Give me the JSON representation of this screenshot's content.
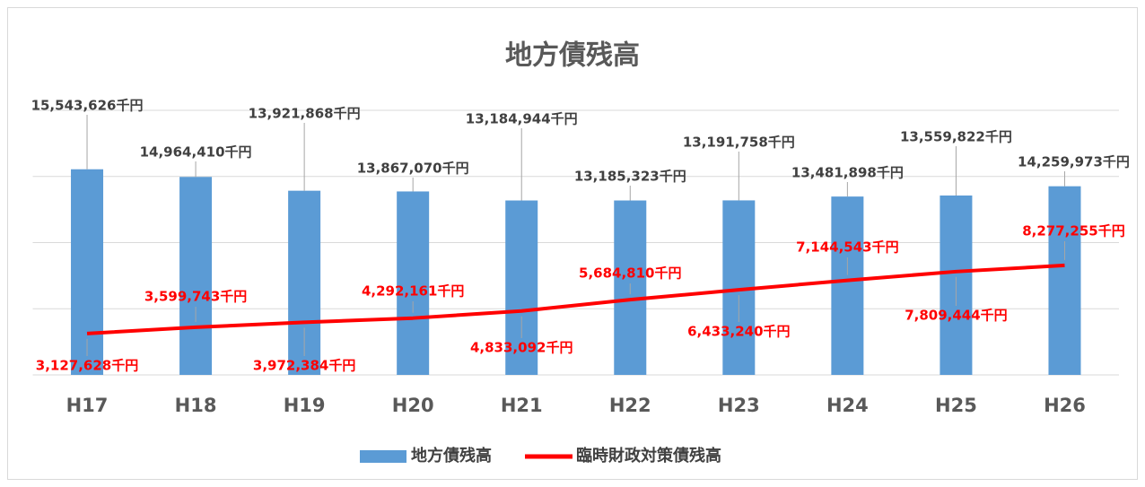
{
  "chart_data": {
    "type": "bar-line",
    "title": "地方債残高",
    "categories": [
      "H17",
      "H18",
      "H19",
      "H20",
      "H21",
      "H22",
      "H23",
      "H24",
      "H25",
      "H26"
    ],
    "series": [
      {
        "name": "地方債残高",
        "type": "bar",
        "color": "#5b9bd5",
        "values": [
          15543626,
          14964410,
          13921868,
          13867070,
          13184944,
          13185323,
          13191758,
          13481898,
          13559822,
          14259973
        ],
        "value_labels": [
          "15,543,626千円",
          "14,964,410千円",
          "13,921,868千円",
          "13,867,070千円",
          "13,184,944千円",
          "13,185,323千円",
          "13,191,758千円",
          "13,481,898千円",
          "13,559,822千円",
          "14,259,973千円"
        ]
      },
      {
        "name": "臨時財政対策債残高",
        "type": "line",
        "color": "#ff0000",
        "values": [
          3127628,
          3599743,
          3972384,
          4292161,
          4833092,
          5684810,
          6433240,
          7144543,
          7809444,
          8277255
        ],
        "value_labels": [
          "3,127,628千円",
          "3,599,743千円",
          "3,972,384千円",
          "4,292,161千円",
          "4,833,092千円",
          "5,684,810千円",
          "6,433,240千円",
          "7,144,543千円",
          "7,809,444千円",
          "8,277,255千円"
        ]
      }
    ],
    "ylim": [
      0,
      20000000
    ],
    "yticks": [
      0,
      5000000,
      10000000,
      15000000,
      20000000
    ],
    "grid": true,
    "legend": "bottom"
  }
}
